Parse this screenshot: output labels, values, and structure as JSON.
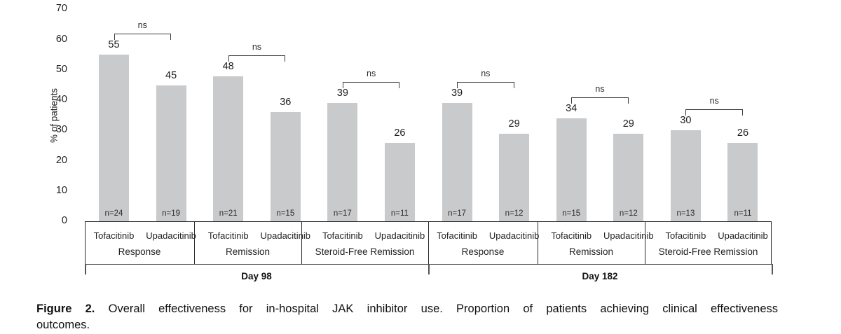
{
  "chart_data": {
    "type": "bar",
    "title": "",
    "ylabel": "% of patients",
    "ylim": [
      0,
      70
    ],
    "yticks": [
      0,
      10,
      20,
      30,
      40,
      50,
      60,
      70
    ],
    "bar_color": "#c9cacb",
    "legend_position": "none",
    "grid": false,
    "days": [
      {
        "label": "Day 98",
        "outcomes": [
          {
            "label": "Response",
            "significance": "ns",
            "bars": [
              {
                "drug": "Tofacitinib",
                "value": 55,
                "n_label": "n=24"
              },
              {
                "drug": "Upadacitinib",
                "value": 45,
                "n_label": "n=19"
              }
            ]
          },
          {
            "label": "Remission",
            "significance": "ns",
            "bars": [
              {
                "drug": "Tofacitinib",
                "value": 48,
                "n_label": "n=21"
              },
              {
                "drug": "Upadacitinib",
                "value": 36,
                "n_label": "n=15"
              }
            ]
          },
          {
            "label": "Steroid-Free Remission",
            "significance": "ns",
            "bars": [
              {
                "drug": "Tofacitinib",
                "value": 39,
                "n_label": "n=17"
              },
              {
                "drug": "Upadacitinib",
                "value": 26,
                "n_label": "n=11"
              }
            ]
          }
        ]
      },
      {
        "label": "Day 182",
        "outcomes": [
          {
            "label": "Response",
            "significance": "ns",
            "bars": [
              {
                "drug": "Tofacitinib",
                "value": 39,
                "n_label": "n=17"
              },
              {
                "drug": "Upadacitinib",
                "value": 29,
                "n_label": "n=12"
              }
            ]
          },
          {
            "label": "Remission",
            "significance": "ns",
            "bars": [
              {
                "drug": "Tofacitinib",
                "value": 34,
                "n_label": "n=15"
              },
              {
                "drug": "Upadacitinib",
                "value": 29,
                "n_label": "n=12"
              }
            ]
          },
          {
            "label": "Steroid-Free Remission",
            "significance": "ns",
            "bars": [
              {
                "drug": "Tofacitinib",
                "value": 30,
                "n_label": "n=13"
              },
              {
                "drug": "Upadacitinib",
                "value": 26,
                "n_label": "n=11"
              }
            ]
          }
        ]
      }
    ]
  },
  "caption": {
    "label": "Figure 2.",
    "line1": "Overall effectiveness for in-hospital JAK inhibitor use. Proportion of patients achieving clinical effectiveness",
    "line2": "outcomes."
  }
}
